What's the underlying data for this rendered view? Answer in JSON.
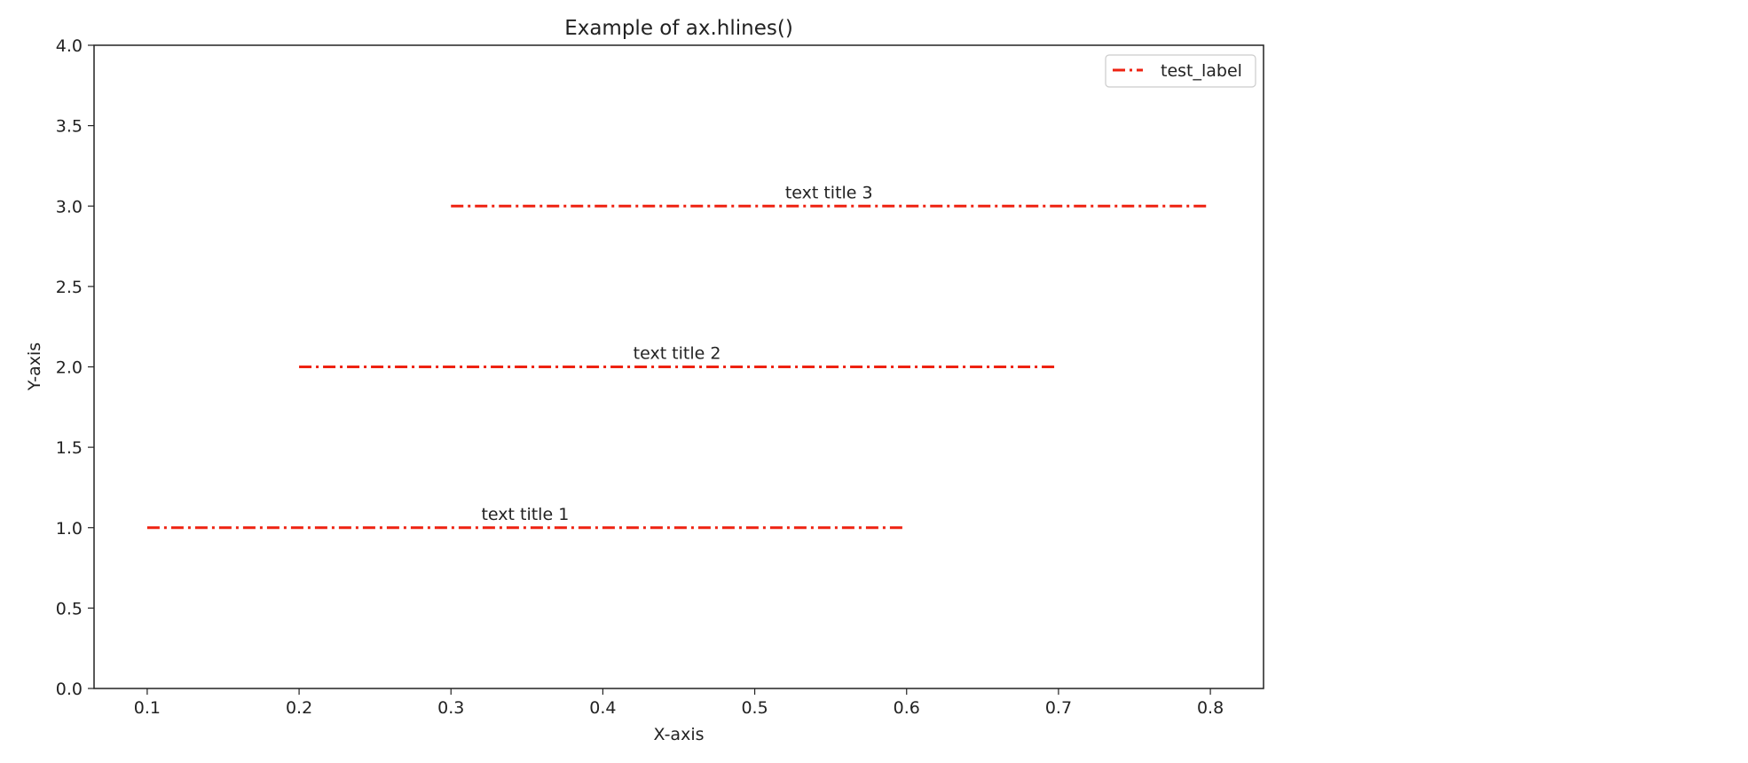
{
  "chart_data": {
    "type": "line",
    "title": "Example of ax.hlines()",
    "xlabel": "X-axis",
    "ylabel": "Y-axis",
    "xlim": [
      0.065,
      0.835
    ],
    "ylim": [
      0.0,
      4.0
    ],
    "xticks": [
      0.1,
      0.2,
      0.3,
      0.4,
      0.5,
      0.6,
      0.7,
      0.8
    ],
    "xtick_labels": [
      "0.1",
      "0.2",
      "0.3",
      "0.4",
      "0.5",
      "0.6",
      "0.7",
      "0.8"
    ],
    "yticks": [
      0.0,
      0.5,
      1.0,
      1.5,
      2.0,
      2.5,
      3.0,
      3.5,
      4.0
    ],
    "ytick_labels": [
      "0.0",
      "0.5",
      "1.0",
      "1.5",
      "2.0",
      "2.5",
      "3.0",
      "3.5",
      "4.0"
    ],
    "grid": false,
    "legend": {
      "position": "top-right",
      "entries": [
        "test_label"
      ]
    },
    "series": [
      {
        "name": "test_label",
        "color": "#ee2211",
        "linestyle": "dash-dot",
        "hlines": [
          {
            "y": 1.0,
            "xmin": 0.1,
            "xmax": 0.6
          },
          {
            "y": 2.0,
            "xmin": 0.2,
            "xmax": 0.7
          },
          {
            "y": 3.0,
            "xmin": 0.3,
            "xmax": 0.8
          }
        ]
      }
    ],
    "annotations": [
      {
        "text": "text title 1",
        "x": 0.32,
        "y": 1.0
      },
      {
        "text": "text title 2",
        "x": 0.42,
        "y": 2.0
      },
      {
        "text": "text title 3",
        "x": 0.52,
        "y": 3.0
      }
    ]
  }
}
